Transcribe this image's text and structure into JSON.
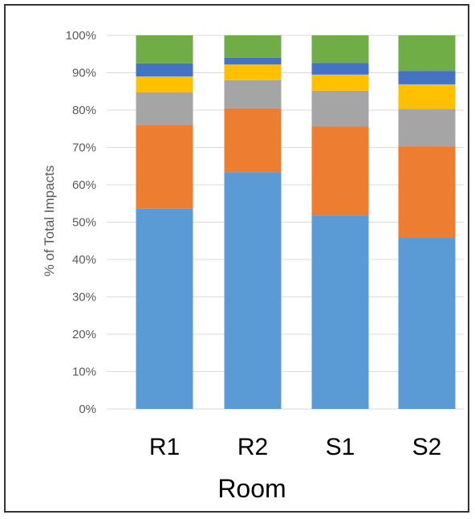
{
  "chart_data": {
    "type": "bar",
    "stacked": true,
    "categories": [
      "R1",
      "R2",
      "S1",
      "S2"
    ],
    "series": [
      {
        "values": [
          53.7,
          63.4,
          51.8,
          45.8
        ],
        "color": "#5b9bd5"
      },
      {
        "values": [
          22.3,
          17.1,
          23.8,
          24.5
        ],
        "color": "#ed7d31"
      },
      {
        "values": [
          8.8,
          7.5,
          9.6,
          10.0
        ],
        "color": "#a5a5a5"
      },
      {
        "values": [
          4.2,
          4.2,
          4.3,
          6.6
        ],
        "color": "#ffc000"
      },
      {
        "values": [
          3.5,
          1.8,
          3.1,
          3.6
        ],
        "color": "#4472c4"
      },
      {
        "values": [
          7.5,
          6.0,
          7.4,
          9.5
        ],
        "color": "#70ad47"
      }
    ],
    "xlabel": "Room",
    "ylabel": "% of Total Impacts",
    "ylim": [
      0,
      100
    ],
    "yticks": [
      "0%",
      "10%",
      "20%",
      "30%",
      "40%",
      "50%",
      "60%",
      "70%",
      "80%",
      "90%",
      "100%"
    ],
    "grid": true,
    "legend": "none"
  }
}
